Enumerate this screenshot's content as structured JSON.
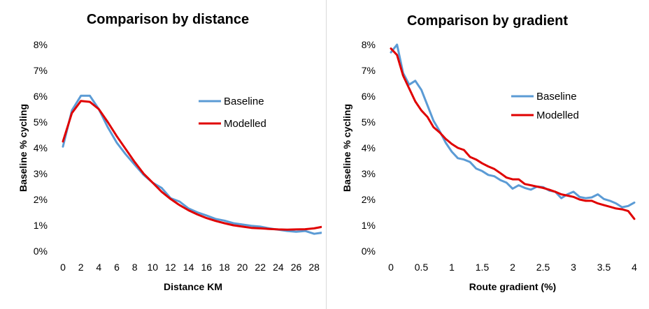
{
  "charts": [
    {
      "type": "line",
      "title": "Comparison  by distance",
      "xlabel": "Distance KM",
      "ylabel": "Baseline % cycling",
      "xlim": [
        0,
        29
      ],
      "ylim": [
        0,
        8
      ],
      "xticks": [
        0,
        2,
        4,
        6,
        8,
        10,
        12,
        14,
        16,
        18,
        20,
        22,
        24,
        26,
        28
      ],
      "xtick_labels": [
        "0",
        "2",
        "4",
        "6",
        "8",
        "10",
        "12",
        "14",
        "16",
        "18",
        "20",
        "22",
        "24",
        "26",
        "28"
      ],
      "yticks": [
        0,
        1,
        2,
        3,
        4,
        5,
        6,
        7,
        8
      ],
      "ytick_labels": [
        "0%",
        "1%",
        "2%",
        "3%",
        "4%",
        "5%",
        "6%",
        "7%",
        "8%"
      ],
      "grid": false,
      "legend_position": "right",
      "series": [
        {
          "name": "Baseline",
          "color": "#5b9bd5",
          "x": [
            0,
            1,
            2,
            3,
            4,
            5,
            6,
            7,
            8,
            9,
            10,
            11,
            12,
            13,
            14,
            15,
            16,
            17,
            18,
            19,
            20,
            21,
            22,
            23,
            24,
            25,
            26,
            27,
            28,
            29
          ],
          "y": [
            4.05,
            5.45,
            6.02,
            6.02,
            5.5,
            4.8,
            4.2,
            3.75,
            3.35,
            2.95,
            2.65,
            2.45,
            2.05,
            1.92,
            1.65,
            1.5,
            1.38,
            1.25,
            1.18,
            1.08,
            1.03,
            0.98,
            0.95,
            0.88,
            0.83,
            0.78,
            0.75,
            0.78,
            0.67,
            0.72
          ]
        },
        {
          "name": "Modelled",
          "color": "#e00000",
          "x": [
            0,
            1,
            2,
            3,
            4,
            5,
            6,
            7,
            8,
            9,
            10,
            11,
            12,
            13,
            14,
            15,
            16,
            17,
            18,
            19,
            20,
            21,
            22,
            23,
            24,
            25,
            26,
            27,
            28,
            29
          ],
          "y": [
            4.25,
            5.35,
            5.82,
            5.78,
            5.5,
            5.0,
            4.45,
            3.95,
            3.45,
            3.0,
            2.65,
            2.3,
            2.02,
            1.78,
            1.58,
            1.42,
            1.28,
            1.17,
            1.08,
            1.0,
            0.95,
            0.9,
            0.88,
            0.86,
            0.84,
            0.83,
            0.84,
            0.85,
            0.88,
            0.95
          ]
        }
      ]
    },
    {
      "type": "line",
      "title": "Comparison  by gradient",
      "xlabel": "Route gradient (%)",
      "ylabel": "Baseline % cycling",
      "xlim": [
        0,
        4
      ],
      "ylim": [
        0,
        8
      ],
      "xticks": [
        0,
        0.5,
        1,
        1.5,
        2,
        2.5,
        3,
        3.5,
        4
      ],
      "xtick_labels": [
        "0",
        "0.5",
        "1",
        "1.5",
        "2",
        "2.5",
        "3",
        "3.5",
        "4"
      ],
      "yticks": [
        0,
        1,
        2,
        3,
        4,
        5,
        6,
        7,
        8
      ],
      "ytick_labels": [
        "0%",
        "1%",
        "2%",
        "3%",
        "4%",
        "5%",
        "6%",
        "7%",
        "8%"
      ],
      "grid": false,
      "legend_position": "right",
      "series": [
        {
          "name": "Baseline",
          "color": "#5b9bd5",
          "x": [
            0,
            0.1,
            0.2,
            0.3,
            0.4,
            0.5,
            0.6,
            0.7,
            0.8,
            0.9,
            1.0,
            1.1,
            1.2,
            1.3,
            1.4,
            1.5,
            1.6,
            1.7,
            1.8,
            1.9,
            2.0,
            2.1,
            2.2,
            2.3,
            2.4,
            2.5,
            2.6,
            2.7,
            2.8,
            2.9,
            3.0,
            3.1,
            3.2,
            3.3,
            3.4,
            3.5,
            3.6,
            3.7,
            3.8,
            3.9,
            4.0
          ],
          "y": [
            7.7,
            8.0,
            6.9,
            6.45,
            6.6,
            6.25,
            5.65,
            5.05,
            4.65,
            4.2,
            3.85,
            3.6,
            3.55,
            3.45,
            3.2,
            3.1,
            2.95,
            2.9,
            2.75,
            2.65,
            2.42,
            2.55,
            2.45,
            2.38,
            2.5,
            2.48,
            2.35,
            2.3,
            2.05,
            2.2,
            2.3,
            2.1,
            2.05,
            2.08,
            2.2,
            2.02,
            1.95,
            1.85,
            1.7,
            1.75,
            1.88
          ]
        },
        {
          "name": "Modelled",
          "color": "#e00000",
          "x": [
            0,
            0.1,
            0.2,
            0.3,
            0.4,
            0.5,
            0.6,
            0.7,
            0.8,
            0.9,
            1.0,
            1.1,
            1.2,
            1.3,
            1.4,
            1.5,
            1.6,
            1.7,
            1.8,
            1.9,
            2.0,
            2.1,
            2.2,
            2.3,
            2.4,
            2.5,
            2.6,
            2.7,
            2.8,
            2.9,
            3.0,
            3.1,
            3.2,
            3.3,
            3.4,
            3.5,
            3.6,
            3.7,
            3.8,
            3.9,
            4.0
          ],
          "y": [
            7.85,
            7.6,
            6.8,
            6.3,
            5.8,
            5.45,
            5.2,
            4.8,
            4.6,
            4.35,
            4.15,
            4.0,
            3.92,
            3.65,
            3.55,
            3.4,
            3.28,
            3.18,
            3.02,
            2.85,
            2.78,
            2.78,
            2.6,
            2.55,
            2.5,
            2.45,
            2.38,
            2.3,
            2.2,
            2.15,
            2.1,
            2.0,
            1.95,
            1.95,
            1.85,
            1.78,
            1.72,
            1.65,
            1.62,
            1.55,
            1.25
          ]
        }
      ]
    }
  ]
}
